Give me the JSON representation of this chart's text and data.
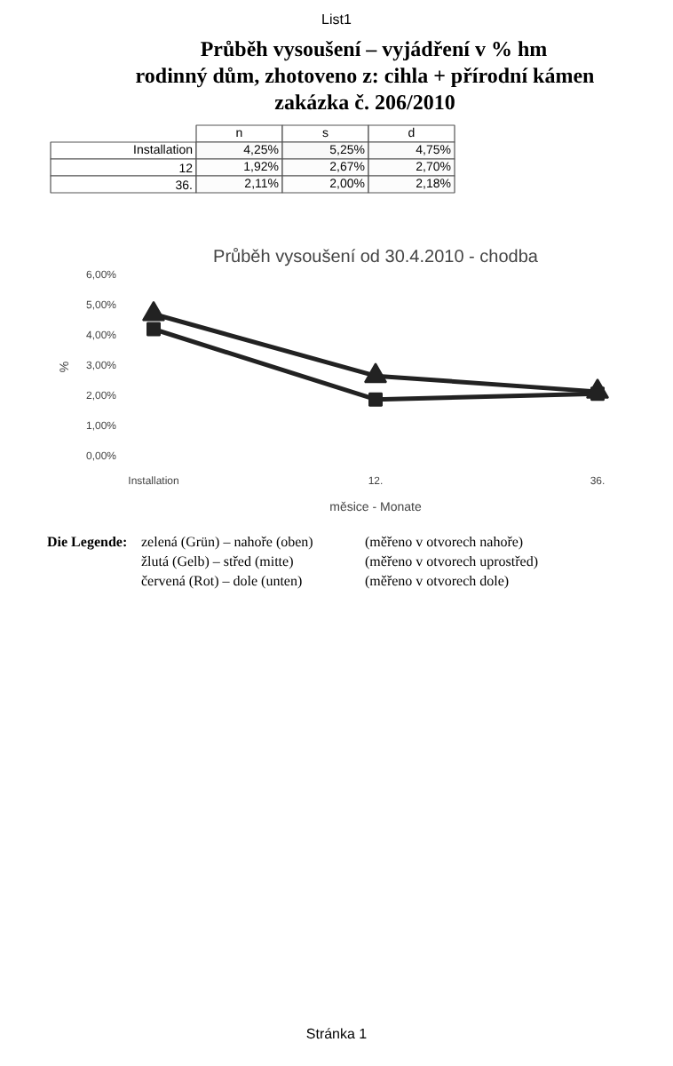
{
  "chart_data": [
    {
      "type": "heatmap",
      "title": "Průběh vysoušení – vyjádření v % hm",
      "subtitle": "rodinný dům, zhotoveno z: cihla + přírodní kámen zakázka č. 206/2010",
      "annotations": [
        "List1"
      ],
      "categories": [
        "n",
        "s",
        "d"
      ],
      "y_categories": [
        "Installation",
        "12",
        "36."
      ],
      "cells": [
        [
          4.25,
          5.25,
          4.75
        ],
        [
          1.92,
          2.67,
          2.7
        ],
        [
          2.11,
          2.0,
          2.18
        ]
      ],
      "cell_labels": [
        [
          "4,25%",
          "5,25%",
          "4,75%"
        ],
        [
          "1,92%",
          "2,67%",
          "2,70%"
        ],
        [
          "2,11%",
          "2,00%",
          "2,18%"
        ]
      ]
    },
    {
      "type": "line",
      "title": "Průběh vysoušení od 30.4.2010 - chodba",
      "xlabel": "měsice - Monate",
      "ylabel": "%",
      "categories": [
        "Installation",
        "12.",
        "36."
      ],
      "series": [
        {
          "color": "#222222",
          "marker": "triangle",
          "values": [
            4.75,
            2.7,
            2.18
          ]
        },
        {
          "color": "#222222",
          "marker": "square",
          "values": [
            4.25,
            1.92,
            2.11
          ]
        }
      ],
      "ylim": [
        0,
        6
      ],
      "yticks": [
        {
          "value": 0,
          "label": "0,00%"
        },
        {
          "value": 1,
          "label": "1,00%"
        },
        {
          "value": 2,
          "label": "2,00%"
        },
        {
          "value": 3,
          "label": "3,00%"
        },
        {
          "value": 4,
          "label": "4,00%"
        },
        {
          "value": 5,
          "label": "5,00%"
        },
        {
          "value": 6,
          "label": "6,00%"
        }
      ],
      "grid": false,
      "line_style": "solid",
      "annotations": [
        "Die Legende:",
        "zelená (Grün) – nahoře (oben)",
        "(měřeno v otvorech nahoře)",
        "žlutá (Gelb) – střed (mitte)",
        "(měřeno v otvorech uprostřed)",
        "červená (Rot) – dole (unten)",
        "(měřeno v otvorech dole)",
        "Stránka 1"
      ]
    }
  ]
}
